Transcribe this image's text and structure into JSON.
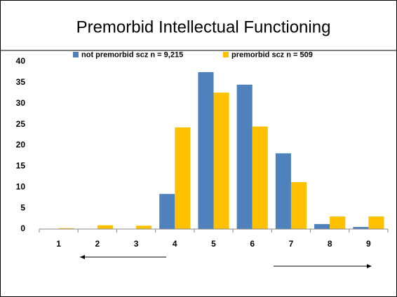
{
  "chart_data": {
    "type": "bar",
    "title": "Premorbid Intellectual Functioning",
    "categories": [
      "1",
      "2",
      "3",
      "4",
      "5",
      "6",
      "7",
      "8",
      "9"
    ],
    "series": [
      {
        "name": "not premorbid scz n = 9,215",
        "color": "#4f81bd",
        "values": [
          0,
          0,
          0,
          8.4,
          37.5,
          34.5,
          18.1,
          1.2,
          0.5
        ]
      },
      {
        "name": "premorbid scz n = 509",
        "color": "#ffc000",
        "values": [
          0.2,
          0.9,
          0.8,
          24.3,
          32.6,
          24.5,
          11.2,
          3.0,
          3.0
        ]
      }
    ],
    "ylim": [
      0,
      40
    ],
    "yticks": [
      0,
      5,
      10,
      15,
      20,
      25,
      30,
      35,
      40
    ],
    "grid": false,
    "legend": "top"
  }
}
